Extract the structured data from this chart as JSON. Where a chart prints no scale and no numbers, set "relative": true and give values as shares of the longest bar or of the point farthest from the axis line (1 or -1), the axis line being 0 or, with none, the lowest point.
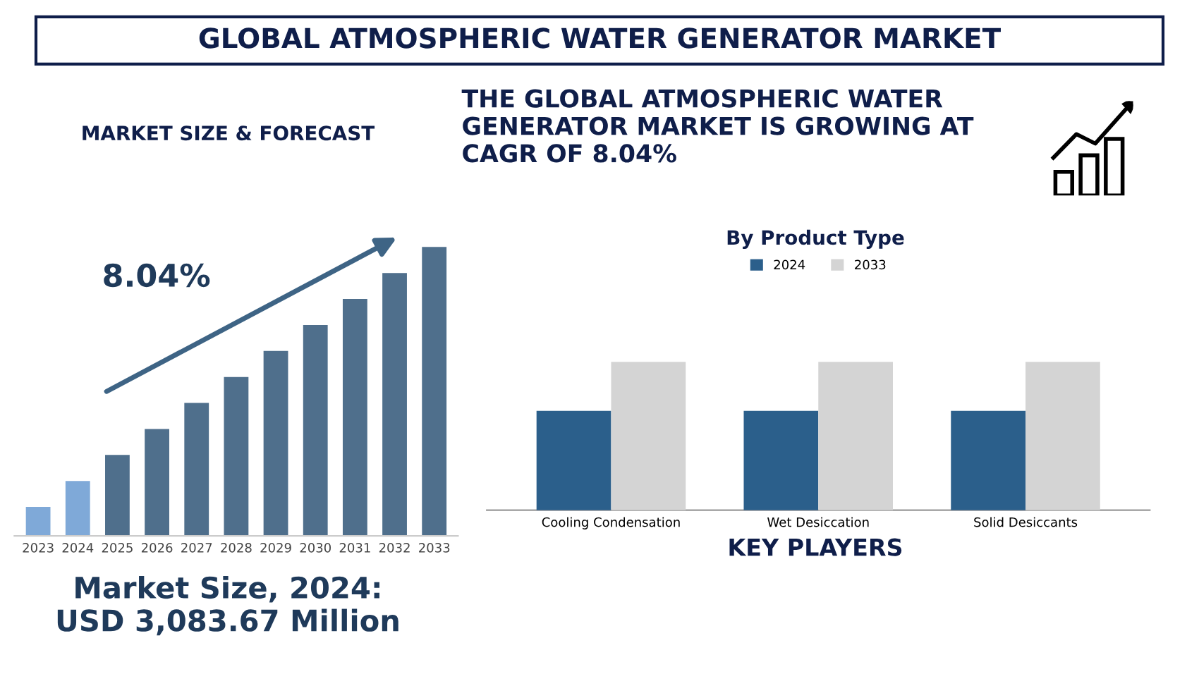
{
  "chart_data": [
    {
      "type": "other",
      "title": "GLOBAL ATMOSPHERIC WATER GENERATOR MARKET",
      "annotations": [
        "THE GLOBAL ATMOSPHERIC WATER GENERATOR MARKET IS GROWING AT CAGR OF 8.04%",
        "KEY PLAYERS"
      ]
    },
    {
      "type": "bar",
      "title": "MARKET SIZE & FORECAST",
      "relative": true,
      "categories": [
        "2023",
        "2024",
        "2025",
        "2026",
        "2027",
        "2028",
        "2029",
        "2030",
        "2031",
        "2032",
        "2033"
      ],
      "values": [
        0.1,
        0.19,
        0.28,
        0.37,
        0.46,
        0.55,
        0.64,
        0.73,
        0.82,
        0.91,
        1.0
      ],
      "colors": [
        "#7fa9d8",
        "#7fa9d8",
        "#4f6f8c",
        "#4f6f8c",
        "#4f6f8c",
        "#4f6f8c",
        "#4f6f8c",
        "#4f6f8c",
        "#4f6f8c",
        "#4f6f8c",
        "#4f6f8c"
      ],
      "annotations": [
        "8.04%",
        "Market Size, 2024:\nUSD 3,083.67 Million"
      ]
    },
    {
      "type": "bar",
      "title": "By Product Type",
      "relative": true,
      "categories": [
        "Cooling Condensation",
        "Wet Desiccation",
        "Solid Desiccants"
      ],
      "series": [
        {
          "name": "2024",
          "color": "#2b5f8b",
          "values": [
            0.67,
            0.67,
            0.67
          ]
        },
        {
          "name": "2033",
          "color": "#d4d4d4",
          "values": [
            1.0,
            1.0,
            1.0
          ]
        }
      ],
      "legend": "top"
    }
  ]
}
